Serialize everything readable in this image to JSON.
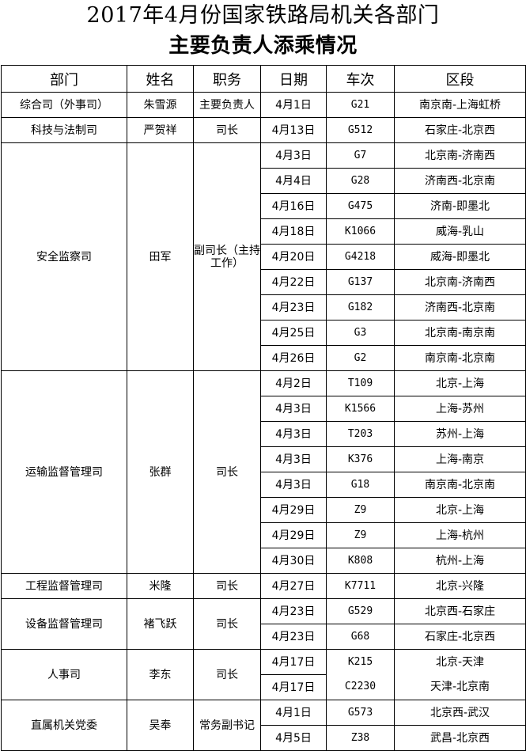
{
  "title_line1": "2017年4月份国家铁路局机关各部门",
  "title_line2": "主要负责人添乘情况",
  "headers": [
    "部门",
    "姓名",
    "职务",
    "日期",
    "车次",
    "区段"
  ],
  "groups": [
    {
      "dept": "综合司（外事司）",
      "name": "朱雪源",
      "position": "主要负责人",
      "trips": [
        [
          "4月1日",
          "G21",
          "南京南-上海虹桥"
        ]
      ]
    },
    {
      "dept": "科技与法制司",
      "name": "严贺祥",
      "position": "司长",
      "trips": [
        [
          "4月13日",
          "G512",
          "石家庄-北京西"
        ]
      ]
    },
    {
      "dept": "安全监察司",
      "name": "田军",
      "position": "副司长（主持工作）",
      "trips": [
        [
          "4月3日",
          "G7",
          "北京南-济南西"
        ],
        [
          "4月4日",
          "G28",
          "济南西-北京南"
        ],
        [
          "4月16日",
          "G475",
          "济南-即墨北"
        ],
        [
          "4月18日",
          "K1066",
          "威海-乳山"
        ],
        [
          "4月20日",
          "G4218",
          "威海-即墨北"
        ],
        [
          "4月22日",
          "G137",
          "北京南-济南西"
        ],
        [
          "4月23日",
          "G182",
          "济南西-北京南"
        ],
        [
          "4月25日",
          "G3",
          "北京南-南京南"
        ],
        [
          "4月26日",
          "G2",
          "南京南-北京南"
        ]
      ]
    },
    {
      "dept": "运输监督管理司",
      "name": "张群",
      "position": "司长",
      "trips": [
        [
          "4月2日",
          "T109",
          "北京-上海"
        ],
        [
          "4月3日",
          "K1566",
          "上海-苏州"
        ],
        [
          "4月3日",
          "T203",
          "苏州-上海"
        ],
        [
          "4月3日",
          "K376",
          "上海-南京"
        ],
        [
          "4月3日",
          "G18",
          "南京南-北京南"
        ],
        [
          "4月29日",
          "Z9",
          "北京-上海"
        ],
        [
          "4月29日",
          "Z9",
          "上海-杭州"
        ],
        [
          "4月30日",
          "K808",
          "杭州-上海"
        ]
      ]
    },
    {
      "dept": "工程监督管理司",
      "name": "米隆",
      "position": "司长",
      "trips": [
        [
          "4月27日",
          "K7711",
          "北京-兴隆"
        ]
      ]
    },
    {
      "dept": "设备监督管理司",
      "name": "褚飞跃",
      "position": "司长",
      "trips": [
        [
          "4月23日",
          "G529",
          "北京西-石家庄"
        ],
        [
          "4月23日",
          "G68",
          "石家庄-北京西"
        ]
      ]
    },
    {
      "dept": "人事司",
      "name": "李东",
      "position": "司长",
      "merged_trip_cells": true,
      "trips": [
        [
          "4月17日",
          "K215",
          "北京-天津"
        ],
        [
          "4月17日",
          "C2230",
          "天津-北京南"
        ]
      ]
    },
    {
      "dept": "直属机关党委",
      "name": "吴奉",
      "position": "常务副书记",
      "trips": [
        [
          "4月1日",
          "G573",
          "北京西-武汉"
        ],
        [
          "4月5日",
          "Z38",
          "武昌-北京西"
        ]
      ]
    }
  ]
}
